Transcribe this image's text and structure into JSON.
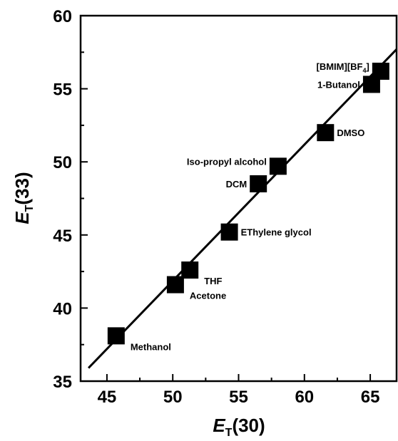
{
  "chart_data": {
    "type": "scatter",
    "xlabel": {
      "main": "E",
      "sub": "T",
      "rest": "(30)"
    },
    "ylabel": {
      "main": "E",
      "sub": "T",
      "rest": "(33)"
    },
    "xlim": [
      43,
      67
    ],
    "ylim": [
      35,
      60
    ],
    "xticks": [
      45,
      50,
      55,
      60,
      65
    ],
    "yticks": [
      35,
      40,
      45,
      50,
      55,
      60
    ],
    "grid": false,
    "legend": "none",
    "marker": "square",
    "colors": {
      "marker": "#000000",
      "line": "#000000"
    },
    "points": [
      {
        "label": "Methanol",
        "x": 45.7,
        "y": 38.1,
        "label_pos": "below-right"
      },
      {
        "label": "Acetone",
        "x": 50.2,
        "y": 41.6,
        "label_pos": "below-right"
      },
      {
        "label": "THF",
        "x": 51.3,
        "y": 42.6,
        "label_pos": "below-right"
      },
      {
        "label": "EThylene glycol",
        "x": 54.3,
        "y": 45.2,
        "label_pos": "right"
      },
      {
        "label": "DCM",
        "x": 56.5,
        "y": 48.5,
        "label_pos": "left"
      },
      {
        "label": "Iso-propyl alcohol",
        "x": 58.0,
        "y": 49.7,
        "label_pos": "above-left"
      },
      {
        "label": "DMSO",
        "x": 61.6,
        "y": 52.0,
        "label_pos": "right"
      },
      {
        "label": "1-Butanol",
        "x": 65.1,
        "y": 55.3,
        "label_pos": "left"
      },
      {
        "label": "[BMIM][BF",
        "label_sub": "4",
        "label_end": "]",
        "x": 65.8,
        "y": 56.2,
        "label_pos": "above-left"
      }
    ],
    "fit_line": {
      "x": [
        43.6,
        67.0
      ],
      "y": [
        35.9,
        57.7
      ]
    }
  }
}
